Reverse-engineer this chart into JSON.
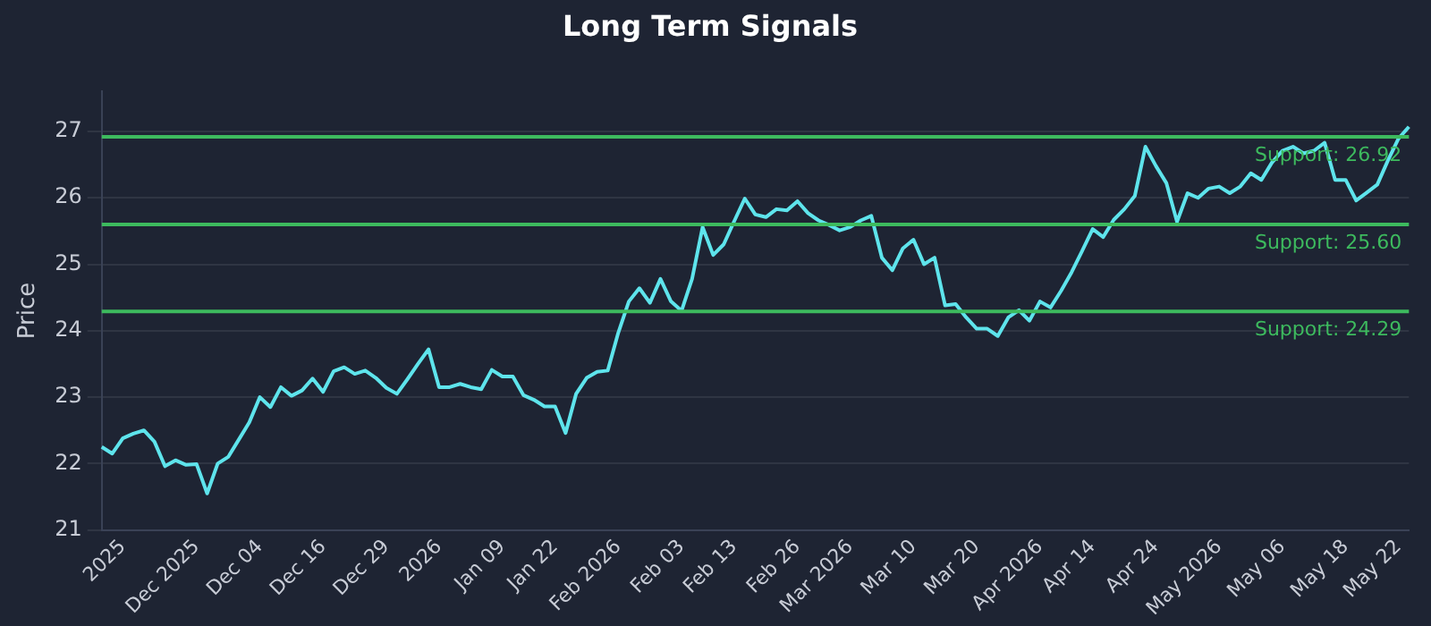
{
  "chart_data": {
    "type": "line",
    "title": "Long Term Signals",
    "ylabel": "Price",
    "categories": [
      null,
      null,
      "2025",
      null,
      null,
      null,
      null,
      null,
      null,
      "Dec 2025",
      null,
      null,
      null,
      null,
      null,
      "Dec 04",
      null,
      null,
      null,
      null,
      null,
      "Dec 16",
      null,
      null,
      null,
      null,
      null,
      "Dec 29",
      null,
      null,
      null,
      null,
      "2026",
      null,
      null,
      null,
      null,
      null,
      "Jan 09",
      null,
      null,
      null,
      null,
      "Jan 22",
      null,
      null,
      null,
      null,
      null,
      "Feb 2026",
      null,
      null,
      null,
      null,
      null,
      "Feb 03",
      null,
      null,
      null,
      null,
      "Feb 13",
      null,
      null,
      null,
      null,
      null,
      "Feb 26",
      null,
      null,
      null,
      null,
      "Mar 2026",
      null,
      null,
      null,
      null,
      null,
      "Mar 10",
      null,
      null,
      null,
      null,
      null,
      "Mar 20",
      null,
      null,
      null,
      null,
      null,
      "Apr 2026",
      null,
      null,
      null,
      null,
      "Apr 14",
      null,
      null,
      null,
      null,
      null,
      "Apr 24",
      null,
      null,
      null,
      null,
      null,
      "May 2026",
      null,
      null,
      null,
      null,
      null,
      "May 06",
      null,
      null,
      null,
      null,
      null,
      "May 18",
      null,
      null,
      null,
      null,
      "May 22",
      null
    ],
    "series": [
      {
        "color": "#5ee4ec",
        "values": [
          22.25,
          22.15,
          22.38,
          22.45,
          22.5,
          22.33,
          21.96,
          22.05,
          21.98,
          21.99,
          21.55,
          22.0,
          22.1,
          22.36,
          22.62,
          23.0,
          22.85,
          23.15,
          23.02,
          23.1,
          23.28,
          23.08,
          23.39,
          23.45,
          23.35,
          23.4,
          23.29,
          23.14,
          23.05,
          23.27,
          23.5,
          23.72,
          23.15,
          23.15,
          23.2,
          23.15,
          23.12,
          23.41,
          23.31,
          23.31,
          23.03,
          22.96,
          22.86,
          22.86,
          22.46,
          23.05,
          23.29,
          23.38,
          23.4,
          23.97,
          24.44,
          24.64,
          24.42,
          24.78,
          24.44,
          24.3,
          24.78,
          25.56,
          25.14,
          25.3,
          25.65,
          25.99,
          25.75,
          25.71,
          25.83,
          25.81,
          25.95,
          25.77,
          25.66,
          25.59,
          25.51,
          25.56,
          25.66,
          25.73,
          25.1,
          24.91,
          25.24,
          25.37,
          25.0,
          25.1,
          24.38,
          24.4,
          24.2,
          24.03,
          24.03,
          23.92,
          24.2,
          24.31,
          24.15,
          24.44,
          24.35,
          24.6,
          24.88,
          25.2,
          25.53,
          25.41,
          25.67,
          25.83,
          26.03,
          26.77,
          26.48,
          26.22,
          25.64,
          26.07,
          26.0,
          26.14,
          26.17,
          26.07,
          26.17,
          26.37,
          26.27,
          26.53,
          26.71,
          26.77,
          26.67,
          26.71,
          26.83,
          26.27,
          26.27,
          25.96,
          26.08,
          26.2,
          26.56,
          26.89,
          27.07
        ]
      }
    ],
    "ylim": [
      21,
      27.6
    ],
    "yticks": [
      21,
      22,
      23,
      24,
      25,
      26,
      27
    ],
    "grid": "y",
    "legend": false,
    "marker": "none",
    "line_style": "solid",
    "ref_lines": [
      {
        "axis": "y",
        "value": 26.92,
        "label": "Support: 26.92",
        "color": "#3dba5e"
      },
      {
        "axis": "y",
        "value": 25.6,
        "label": "Support: 25.60",
        "color": "#3dba5e"
      },
      {
        "axis": "y",
        "value": 24.29,
        "label": "Support: 24.29",
        "color": "#3dba5e"
      }
    ]
  }
}
